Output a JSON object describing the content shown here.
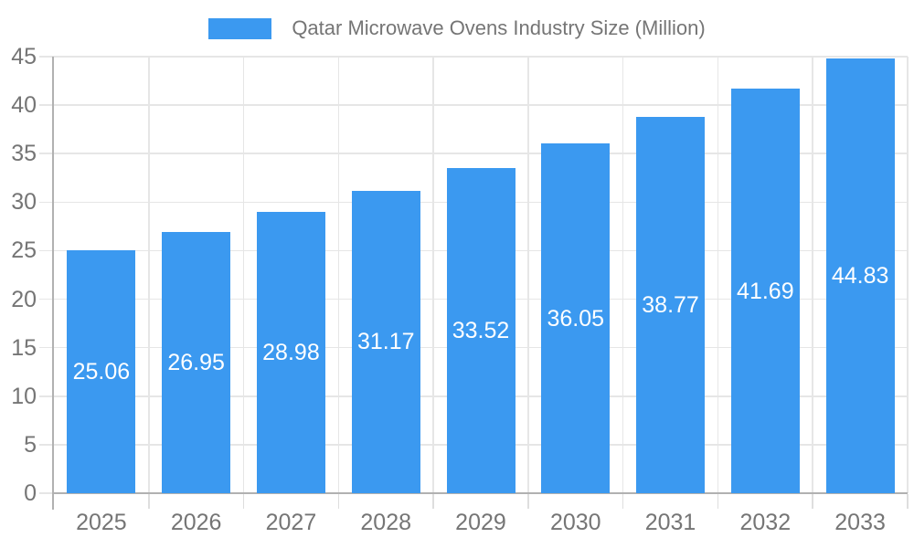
{
  "legend": {
    "label": "Qatar Microwave Ovens Industry Size (Million)"
  },
  "colors": {
    "bar": "#3b99f0",
    "axis_text": "#757575",
    "value_text": "#ffffff",
    "gridline": "#e6e6e6",
    "boundary_tick": "#dedede",
    "axis_line": "#b1b1b1",
    "background": "#ffffff"
  },
  "chart_data": {
    "type": "bar",
    "title": "Qatar Microwave Ovens Industry Size (Million)",
    "categories": [
      "2025",
      "2026",
      "2027",
      "2028",
      "2029",
      "2030",
      "2031",
      "2032",
      "2033"
    ],
    "series": [
      {
        "name": "Qatar Microwave Ovens Industry Size (Million)",
        "values": [
          25.06,
          26.95,
          28.98,
          31.17,
          33.52,
          36.05,
          38.77,
          41.69,
          44.83
        ]
      }
    ],
    "value_label_format": "2-decimals",
    "value_label_position": "inside-center",
    "xlabel": "",
    "ylabel": "",
    "ylim": [
      0,
      45
    ],
    "yticks": [
      0,
      5,
      10,
      15,
      20,
      25,
      30,
      35,
      40,
      45
    ],
    "grid": true,
    "legend_position": "top-center"
  }
}
